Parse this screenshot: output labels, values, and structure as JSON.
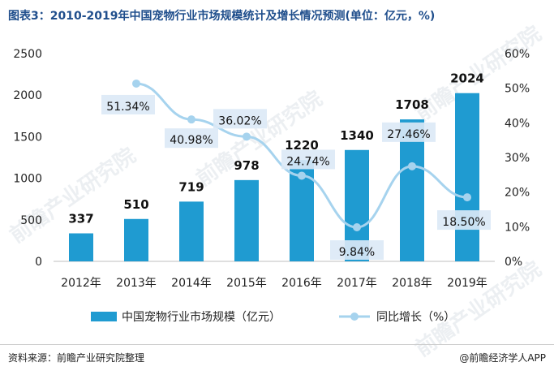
{
  "title": "图表3：2010-2019年中国宠物行业市场规模统计及增长情况预测(单位：亿元，%)",
  "footer": {
    "source": "资料来源：前瞻产业研究院整理",
    "brand": "@前瞻经济学人APP"
  },
  "watermark": "前瞻产业研究院",
  "colors": {
    "bar": "#1f9bd1",
    "line": "#a6d3ee",
    "label_bg": "#dce9f6",
    "axis_text": "#222222"
  },
  "chart_data": {
    "type": "bar",
    "categories": [
      "2012年",
      "2013年",
      "2014年",
      "2015年",
      "2016年",
      "2017年",
      "2018年",
      "2019年"
    ],
    "series": [
      {
        "name": "中国宠物行业市场规模（亿元）",
        "type": "bar",
        "axis": "left",
        "values": [
          337,
          510,
          719,
          978,
          1220,
          1340,
          1708,
          2024
        ],
        "labels": [
          "337",
          "510",
          "719",
          "978",
          "1220",
          "1340",
          "1708",
          "2024"
        ]
      },
      {
        "name": "同比增长（%）",
        "type": "line",
        "axis": "right",
        "values": [
          null,
          51.34,
          40.98,
          36.02,
          24.74,
          9.84,
          27.46,
          18.5
        ],
        "labels": [
          "",
          "51.34%",
          "40.98%",
          "36.02%",
          "24.74%",
          "9.84%",
          "27.46%",
          "18.50%"
        ]
      }
    ],
    "left_axis": {
      "min": 0,
      "max": 2500,
      "ticks": [
        0,
        500,
        1000,
        1500,
        2000,
        2500
      ],
      "tick_labels": [
        "0",
        "500",
        "1000",
        "1500",
        "2000",
        "2500"
      ]
    },
    "right_axis": {
      "min": 0,
      "max": 60,
      "ticks": [
        0,
        10,
        20,
        30,
        40,
        50,
        60
      ],
      "tick_labels": [
        "0%",
        "10%",
        "20%",
        "30%",
        "40%",
        "50%",
        "60%"
      ]
    },
    "grid": false,
    "legend_position": "bottom"
  }
}
